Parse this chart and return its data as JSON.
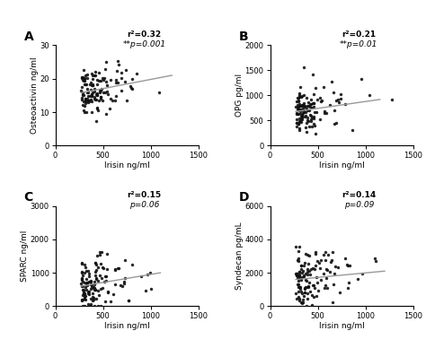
{
  "panels": [
    {
      "label": "A",
      "r2": "r²=0.32",
      "pval": "**p=0.001",
      "pval_italic_prefix": "**",
      "ylabel": "Osteoactivin ng/ml",
      "xlabel": "Irisin ng/ml",
      "xlim": [
        0,
        1500
      ],
      "ylim": [
        0,
        30
      ],
      "xticks": [
        0,
        500,
        1000,
        1500
      ],
      "yticks": [
        0,
        10,
        20,
        30
      ],
      "trend_x": [
        270,
        1220
      ],
      "trend_y": [
        15.8,
        21.0
      ],
      "x_center": 300,
      "x_scale": 160,
      "y_center": 17.5,
      "y_noise": 3.5
    },
    {
      "label": "B",
      "r2": "r²=0.21",
      "pval": "**p=0.01",
      "ylabel": "OPG pg/ml",
      "xlabel": "Irisin ng/ml",
      "xlim": [
        0,
        1500
      ],
      "ylim": [
        0,
        2000
      ],
      "xticks": [
        0,
        500,
        1000,
        1500
      ],
      "yticks": [
        0,
        500,
        1000,
        1500,
        2000
      ],
      "trend_x": [
        270,
        1150
      ],
      "trend_y": [
        680,
        920
      ],
      "x_center": 320,
      "x_scale": 160,
      "y_center": 750,
      "y_noise": 220
    },
    {
      "label": "C",
      "r2": "r²=0.15",
      "pval": "p=0.06",
      "ylabel": "SPARC ng/ml",
      "xlabel": "Irisin ng/ml",
      "xlim": [
        0,
        1500
      ],
      "ylim": [
        0,
        3000
      ],
      "xticks": [
        0,
        500,
        1000,
        1500
      ],
      "yticks": [
        0,
        1000,
        2000,
        3000
      ],
      "trend_x": [
        270,
        1100
      ],
      "trend_y": [
        600,
        1000
      ],
      "x_center": 320,
      "x_scale": 160,
      "y_center": 750,
      "y_noise": 450
    },
    {
      "label": "D",
      "r2": "r²=0.14",
      "pval": "p=0.09",
      "ylabel": "Syndecan pg/mL",
      "xlabel": "Irisin ng/ml",
      "xlim": [
        0,
        1500
      ],
      "ylim": [
        0,
        6000
      ],
      "xticks": [
        0,
        500,
        1000,
        1500
      ],
      "yticks": [
        0,
        2000,
        4000,
        6000
      ],
      "trend_x": [
        270,
        1200
      ],
      "trend_y": [
        1600,
        2100
      ],
      "x_center": 350,
      "x_scale": 170,
      "y_center": 1800,
      "y_noise": 900
    }
  ],
  "dot_color": "#111111",
  "trend_color": "#999999",
  "background_color": "#ffffff",
  "dot_size": 6,
  "dot_alpha": 0.9
}
